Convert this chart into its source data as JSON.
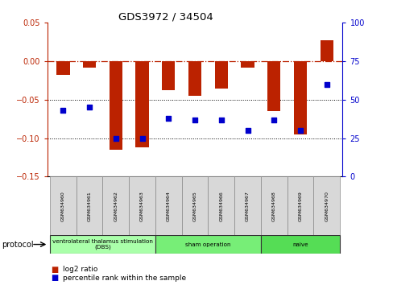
{
  "title": "GDS3972 / 34504",
  "samples": [
    "GSM634960",
    "GSM634961",
    "GSM634962",
    "GSM634963",
    "GSM634964",
    "GSM634965",
    "GSM634966",
    "GSM634967",
    "GSM634968",
    "GSM634969",
    "GSM634970"
  ],
  "log2_ratio": [
    -0.018,
    -0.008,
    -0.115,
    -0.112,
    -0.038,
    -0.045,
    -0.035,
    -0.008,
    -0.065,
    -0.095,
    0.027
  ],
  "percentile_rank": [
    43,
    45,
    25,
    25,
    38,
    37,
    37,
    30,
    37,
    30,
    60
  ],
  "bar_color": "#bb2200",
  "dot_color": "#0000cc",
  "ylim_left": [
    -0.15,
    0.05
  ],
  "ylim_right": [
    0,
    100
  ],
  "right_ticks": [
    0,
    25,
    50,
    75,
    100
  ],
  "left_ticks": [
    -0.15,
    -0.1,
    -0.05,
    0.0,
    0.05
  ],
  "hline_y": 0,
  "dotted_hlines": [
    -0.05,
    -0.1
  ],
  "protocols": [
    {
      "label": "ventrolateral thalamus stimulation\n(DBS)",
      "start": 0,
      "end": 3,
      "color": "#aaffaa"
    },
    {
      "label": "sham operation",
      "start": 4,
      "end": 7,
      "color": "#77ee77"
    },
    {
      "label": "naive",
      "start": 8,
      "end": 10,
      "color": "#55dd55"
    }
  ],
  "legend_items": [
    {
      "label": "log2 ratio",
      "color": "#bb2200"
    },
    {
      "label": "percentile rank within the sample",
      "color": "#0000cc"
    }
  ],
  "background_color": "#ffffff",
  "bar_width": 0.5
}
